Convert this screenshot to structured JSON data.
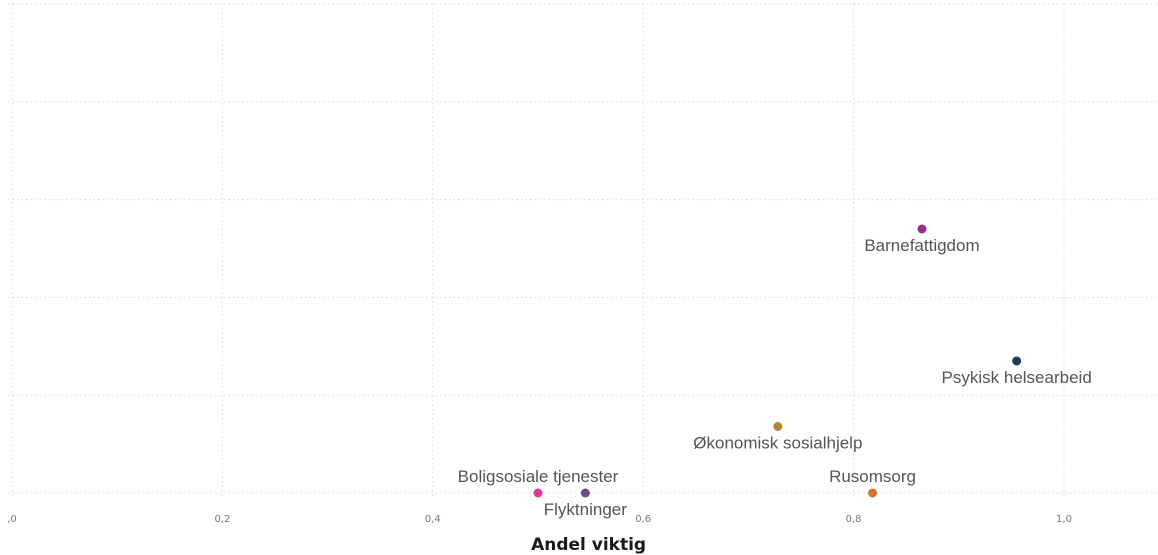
{
  "chart_data": {
    "type": "scatter",
    "title": "",
    "xlabel": "Andel viktig",
    "ylabel": "",
    "xlim": [
      0,
      1.1
    ],
    "ylim": [
      0,
      4
    ],
    "grid": true,
    "x_ticks": [
      {
        "value": 0,
        "label": ",0"
      },
      {
        "value": 0.2,
        "label": "0,2"
      },
      {
        "value": 0.4,
        "label": "0,4"
      },
      {
        "value": 0.6,
        "label": "0,6"
      },
      {
        "value": 0.8,
        "label": "0,8"
      },
      {
        "value": 1.0,
        "label": "1,0"
      }
    ],
    "y_gridlines": [
      0,
      1,
      2,
      3,
      4,
      5
    ],
    "points": [
      {
        "label": "Barnefattigdom",
        "x": 0.865,
        "y": 2.7,
        "color": "#a0289a",
        "label_position": "below"
      },
      {
        "label": "Psykisk helsearbeid",
        "x": 0.955,
        "y": 1.35,
        "color": "#1f3864",
        "label_position": "below"
      },
      {
        "label": "Økonomisk sosialhjelp",
        "x": 0.728,
        "y": 0.68,
        "color": "#b08830",
        "label_position": "below"
      },
      {
        "label": "Rusomsorg",
        "x": 0.818,
        "y": 0.0,
        "color": "#d8702a",
        "label_position": "above"
      },
      {
        "label": "Boligsosiale tjenester",
        "x": 0.5,
        "y": 0.0,
        "color": "#e8359a",
        "label_position": "above"
      },
      {
        "label": "Flyktninger",
        "x": 0.545,
        "y": 0.0,
        "color": "#6a4c8c",
        "label_position": "below"
      }
    ]
  }
}
